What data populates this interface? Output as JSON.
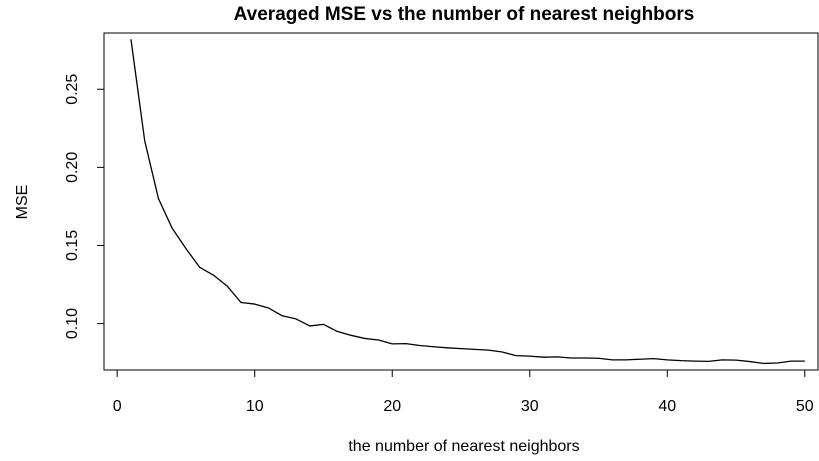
{
  "chart_data": {
    "type": "line",
    "title": "Averaged MSE vs the number of nearest neighbors",
    "xlabel": "the number of nearest neighbors",
    "ylabel": "MSE",
    "xlim": [
      -0.96,
      50.96
    ],
    "ylim": [
      0.0703,
      0.286
    ],
    "xticks": [
      0,
      10,
      20,
      30,
      40,
      50
    ],
    "xtick_labels": [
      "0",
      "10",
      "20",
      "30",
      "40",
      "50"
    ],
    "yticks": [
      0.1,
      0.15,
      0.2,
      0.25
    ],
    "ytick_labels": [
      "0.10",
      "0.15",
      "0.20",
      "0.25"
    ],
    "grid": false,
    "series": [
      {
        "x": [
          1,
          2,
          3,
          4,
          5,
          6,
          7,
          8,
          9,
          10,
          11,
          12,
          13,
          14,
          15,
          16,
          17,
          18,
          19,
          20,
          21,
          22,
          23,
          24,
          25,
          26,
          27,
          28,
          29,
          30,
          31,
          32,
          33,
          34,
          35,
          36,
          37,
          38,
          39,
          40,
          41,
          42,
          43,
          44,
          45,
          46,
          47,
          48,
          49,
          50
        ],
        "values": [
          0.282,
          0.217,
          0.18,
          0.161,
          0.148,
          0.136,
          0.131,
          0.124,
          0.1135,
          0.1125,
          0.11,
          0.105,
          0.103,
          0.0985,
          0.0995,
          0.095,
          0.0925,
          0.0905,
          0.0895,
          0.087,
          0.0872,
          0.086,
          0.0852,
          0.0845,
          0.084,
          0.0835,
          0.083,
          0.0818,
          0.0795,
          0.0792,
          0.0785,
          0.0787,
          0.078,
          0.078,
          0.0778,
          0.0768,
          0.0768,
          0.0772,
          0.0776,
          0.0768,
          0.0763,
          0.076,
          0.0758,
          0.0768,
          0.0766,
          0.0757,
          0.0745,
          0.0748,
          0.076,
          0.076
        ]
      }
    ]
  }
}
